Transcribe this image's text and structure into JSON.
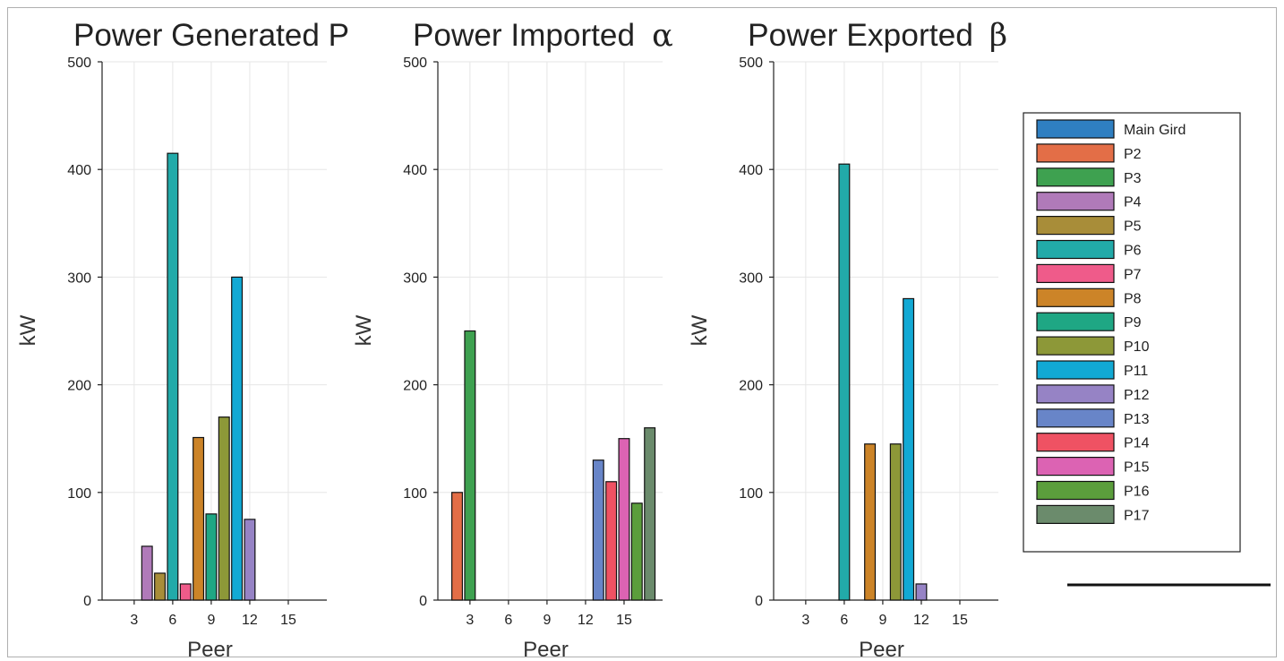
{
  "chart_data": [
    {
      "type": "bar",
      "title": "Power Generated P",
      "xlabel": "Peer",
      "ylabel": "kW",
      "ylim": [
        0,
        500
      ],
      "xlim": [
        0.5,
        18
      ],
      "xticks": [
        3,
        6,
        9,
        12,
        15
      ],
      "yticks": [
        0,
        100,
        200,
        300,
        400,
        500
      ],
      "grid": true,
      "bars": [
        {
          "peer": 4,
          "value": 50
        },
        {
          "peer": 5,
          "value": 25
        },
        {
          "peer": 6,
          "value": 415
        },
        {
          "peer": 7,
          "value": 15
        },
        {
          "peer": 8,
          "value": 151
        },
        {
          "peer": 9,
          "value": 80
        },
        {
          "peer": 10,
          "value": 170
        },
        {
          "peer": 11,
          "value": 300
        },
        {
          "peer": 12,
          "value": 75
        }
      ]
    },
    {
      "type": "bar",
      "title": "Power Imported",
      "title_symbol": "α",
      "xlabel": "Peer",
      "ylabel": "kW",
      "ylim": [
        0,
        500
      ],
      "xlim": [
        0.5,
        18
      ],
      "xticks": [
        3,
        6,
        9,
        12,
        15
      ],
      "yticks": [
        0,
        100,
        200,
        300,
        400,
        500
      ],
      "grid": true,
      "bars": [
        {
          "peer": 2,
          "value": 100
        },
        {
          "peer": 3,
          "value": 250
        },
        {
          "peer": 13,
          "value": 130
        },
        {
          "peer": 14,
          "value": 110
        },
        {
          "peer": 15,
          "value": 150
        },
        {
          "peer": 16,
          "value": 90
        },
        {
          "peer": 17,
          "value": 160
        }
      ]
    },
    {
      "type": "bar",
      "title": "Power Exported",
      "title_symbol": "β",
      "xlabel": "Peer",
      "ylabel": "kW",
      "ylim": [
        0,
        500
      ],
      "xlim": [
        0.5,
        18
      ],
      "xticks": [
        3,
        6,
        9,
        12,
        15
      ],
      "yticks": [
        0,
        100,
        200,
        300,
        400,
        500
      ],
      "grid": true,
      "bars": [
        {
          "peer": 6,
          "value": 405
        },
        {
          "peer": 8,
          "value": 145
        },
        {
          "peer": 10,
          "value": 145
        },
        {
          "peer": 11,
          "value": 280
        },
        {
          "peer": 12,
          "value": 15
        }
      ]
    }
  ],
  "legend": {
    "placement": "right",
    "entries": [
      {
        "label": "Main Gird",
        "color": "#2f7fc1"
      },
      {
        "label": "P2",
        "color": "#e36e47"
      },
      {
        "label": "P3",
        "color": "#3ea150"
      },
      {
        "label": "P4",
        "color": "#b07ab9"
      },
      {
        "label": "P5",
        "color": "#a88d39"
      },
      {
        "label": "P6",
        "color": "#22aaa9"
      },
      {
        "label": "P7",
        "color": "#ef5b8a"
      },
      {
        "label": "P8",
        "color": "#cc8428"
      },
      {
        "label": "P9",
        "color": "#1fa784"
      },
      {
        "label": "P10",
        "color": "#8d9838"
      },
      {
        "label": "P11",
        "color": "#12a9d4"
      },
      {
        "label": "P12",
        "color": "#9683c5"
      },
      {
        "label": "P13",
        "color": "#6885c8"
      },
      {
        "label": "P14",
        "color": "#ef5263"
      },
      {
        "label": "P15",
        "color": "#dc63b3"
      },
      {
        "label": "P16",
        "color": "#5b9e3c"
      },
      {
        "label": "P17",
        "color": "#6b8b6c"
      }
    ]
  }
}
